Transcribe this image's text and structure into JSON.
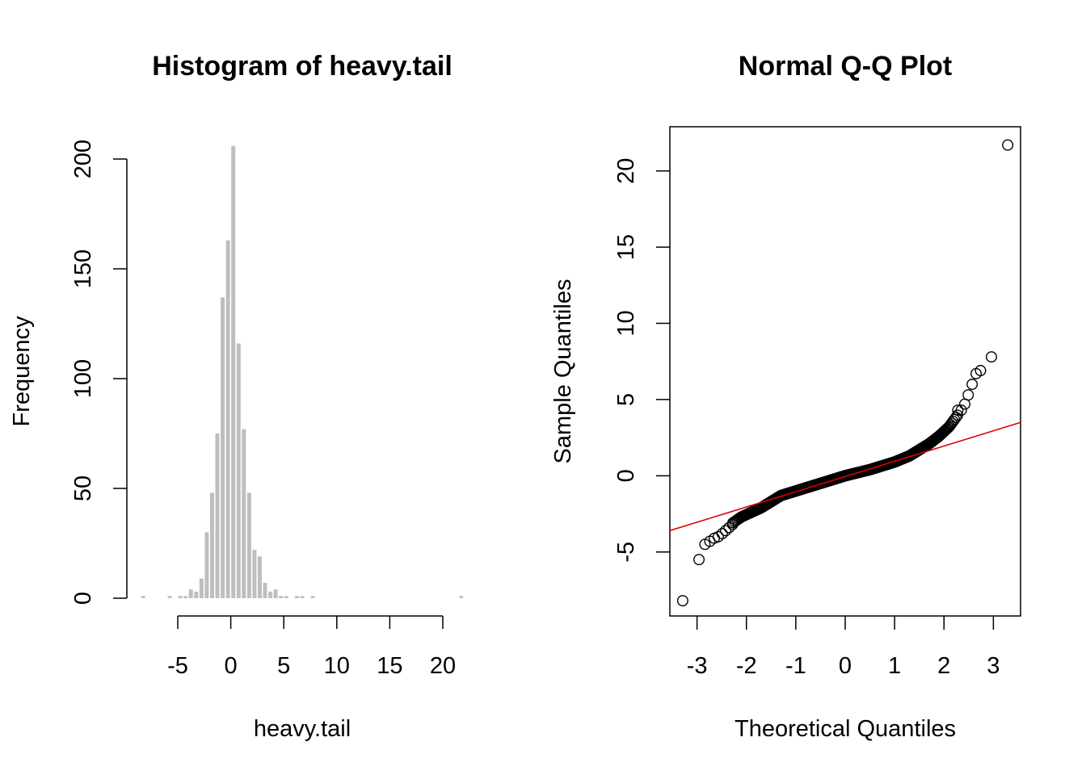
{
  "chart_data": [
    {
      "type": "bar",
      "title": "Histogram of heavy.tail",
      "xlabel": "heavy.tail",
      "ylabel": "Frequency",
      "xlim": [
        -10,
        23
      ],
      "ylim": [
        0,
        210
      ],
      "x_ticks": [
        -5,
        0,
        5,
        10,
        15,
        20
      ],
      "y_ticks": [
        0,
        50,
        100,
        150,
        200
      ],
      "bar_color": "#bebebe",
      "bin_width": 0.5,
      "bins": [
        {
          "left": -8.5,
          "count": 1
        },
        {
          "left": -6.0,
          "count": 1
        },
        {
          "left": -5.0,
          "count": 1
        },
        {
          "left": -4.5,
          "count": 1
        },
        {
          "left": -4.0,
          "count": 4
        },
        {
          "left": -3.5,
          "count": 3
        },
        {
          "left": -3.0,
          "count": 9
        },
        {
          "left": -2.5,
          "count": 30
        },
        {
          "left": -2.0,
          "count": 48
        },
        {
          "left": -1.5,
          "count": 75
        },
        {
          "left": -1.0,
          "count": 137
        },
        {
          "left": -0.5,
          "count": 163
        },
        {
          "left": 0.0,
          "count": 206
        },
        {
          "left": 0.5,
          "count": 116
        },
        {
          "left": 1.0,
          "count": 77
        },
        {
          "left": 1.5,
          "count": 48
        },
        {
          "left": 2.0,
          "count": 22
        },
        {
          "left": 2.5,
          "count": 19
        },
        {
          "left": 3.0,
          "count": 7
        },
        {
          "left": 3.5,
          "count": 3
        },
        {
          "left": 4.0,
          "count": 4
        },
        {
          "left": 4.5,
          "count": 1
        },
        {
          "left": 5.0,
          "count": 1
        },
        {
          "left": 6.0,
          "count": 1
        },
        {
          "left": 6.5,
          "count": 1
        },
        {
          "left": 7.5,
          "count": 1
        },
        {
          "left": 21.5,
          "count": 1
        }
      ]
    },
    {
      "type": "scatter",
      "title": "Normal Q-Q Plot",
      "xlabel": "Theoretical Quantiles",
      "ylabel": "Sample Quantiles",
      "xlim": [
        -3.55,
        3.55
      ],
      "ylim": [
        -9.2,
        22.9
      ],
      "x_ticks": [
        -3,
        -2,
        -1,
        0,
        1,
        2,
        3
      ],
      "y_ticks": [
        -5,
        0,
        5,
        10,
        15,
        20
      ],
      "point_color": "#000000",
      "line_color": "#dd0000",
      "qq_line": {
        "intercept": -0.05,
        "slope": 1.0
      },
      "n": 1000,
      "outer_points": [
        {
          "x": -3.29,
          "y": -8.2
        },
        {
          "x": -2.96,
          "y": -5.5
        },
        {
          "x": -2.84,
          "y": -4.5
        },
        {
          "x": -2.74,
          "y": -4.3
        },
        {
          "x": -2.65,
          "y": -4.1
        },
        {
          "x": -2.57,
          "y": -4.0
        },
        {
          "x": -2.49,
          "y": -3.8
        },
        {
          "x": -2.42,
          "y": -3.6
        },
        {
          "x": -2.35,
          "y": -3.4
        },
        {
          "x": -2.28,
          "y": -3.2
        },
        {
          "x": 2.28,
          "y": 4.3
        },
        {
          "x": 2.35,
          "y": 4.3
        },
        {
          "x": 2.42,
          "y": 4.7
        },
        {
          "x": 2.49,
          "y": 5.3
        },
        {
          "x": 2.57,
          "y": 6.0
        },
        {
          "x": 2.65,
          "y": 6.7
        },
        {
          "x": 2.74,
          "y": 6.9
        },
        {
          "x": 2.96,
          "y": 7.8
        },
        {
          "x": 3.29,
          "y": 21.7
        }
      ],
      "body_profile": [
        {
          "x": -2.28,
          "y": -3.1
        },
        {
          "x": -2.1,
          "y": -2.7
        },
        {
          "x": -1.9,
          "y": -2.4
        },
        {
          "x": -1.7,
          "y": -2.1
        },
        {
          "x": -1.5,
          "y": -1.7
        },
        {
          "x": -1.3,
          "y": -1.3
        },
        {
          "x": -1.0,
          "y": -1.0
        },
        {
          "x": -0.5,
          "y": -0.5
        },
        {
          "x": 0.0,
          "y": 0.0
        },
        {
          "x": 0.5,
          "y": 0.4
        },
        {
          "x": 1.0,
          "y": 0.9
        },
        {
          "x": 1.3,
          "y": 1.3
        },
        {
          "x": 1.5,
          "y": 1.7
        },
        {
          "x": 1.7,
          "y": 2.1
        },
        {
          "x": 1.9,
          "y": 2.6
        },
        {
          "x": 2.1,
          "y": 3.2
        },
        {
          "x": 2.28,
          "y": 4.0
        }
      ]
    }
  ]
}
